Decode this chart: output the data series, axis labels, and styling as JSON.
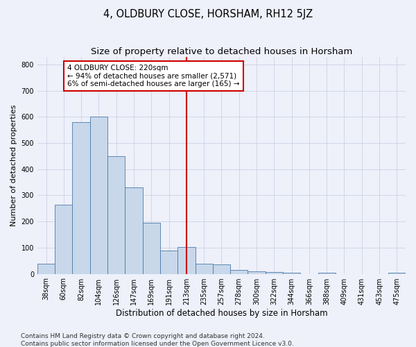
{
  "title": "4, OLDBURY CLOSE, HORSHAM, RH12 5JZ",
  "subtitle": "Size of property relative to detached houses in Horsham",
  "xlabel": "Distribution of detached houses by size in Horsham",
  "ylabel": "Number of detached properties",
  "categories": [
    "38sqm",
    "60sqm",
    "82sqm",
    "104sqm",
    "126sqm",
    "147sqm",
    "169sqm",
    "191sqm",
    "213sqm",
    "235sqm",
    "257sqm",
    "278sqm",
    "300sqm",
    "322sqm",
    "344sqm",
    "366sqm",
    "388sqm",
    "409sqm",
    "431sqm",
    "453sqm",
    "475sqm"
  ],
  "values": [
    38,
    263,
    580,
    600,
    450,
    330,
    195,
    88,
    103,
    38,
    35,
    15,
    10,
    8,
    5,
    0,
    5,
    0,
    0,
    0,
    5
  ],
  "bar_color": "#c8d8ea",
  "bar_edge_color": "#4a7aaa",
  "marker_line_color": "#cc0000",
  "marker_idx": 8,
  "annotation_title": "4 OLDBURY CLOSE: 220sqm",
  "annotation_line1": "← 94% of detached houses are smaller (2,571)",
  "annotation_line2": "6% of semi-detached houses are larger (165) →",
  "annotation_box_color": "#ffffff",
  "annotation_box_edge": "#cc0000",
  "ylim": [
    0,
    830
  ],
  "yticks": [
    0,
    100,
    200,
    300,
    400,
    500,
    600,
    700,
    800
  ],
  "grid_color": "#c8cce0",
  "background_color": "#eef0fa",
  "footnote1": "Contains HM Land Registry data © Crown copyright and database right 2024.",
  "footnote2": "Contains public sector information licensed under the Open Government Licence v3.0.",
  "title_fontsize": 10.5,
  "subtitle_fontsize": 9.5,
  "xlabel_fontsize": 8.5,
  "ylabel_fontsize": 8,
  "tick_fontsize": 7,
  "annotation_fontsize": 7.5,
  "footnote_fontsize": 6.5
}
